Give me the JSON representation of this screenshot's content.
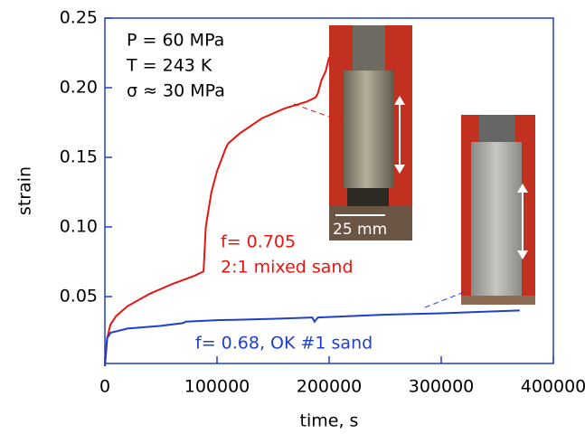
{
  "chart_data": {
    "type": "line",
    "xlabel": "time, s",
    "ylabel": "strain",
    "xlim": [
      0,
      400000
    ],
    "ylim": [
      0,
      0.25
    ],
    "xticks": [
      0,
      100000,
      200000,
      300000,
      400000
    ],
    "yticks": [
      0.05,
      {
        "value": 0.1,
        "label": "0.10"
      },
      0.15,
      {
        "value": 0.2,
        "label": "0.20"
      },
      0.25
    ],
    "annotations": [
      "P = 60 MPa",
      "T = 243 K",
      "σ ≈ 30 MPa",
      "25 mm"
    ],
    "series": [
      {
        "name": "f= 0.705",
        "subtitle": "2:1 mixed sand",
        "color": "#e8140f",
        "x": [
          0,
          2000,
          5000,
          10000,
          20000,
          40000,
          60000,
          80000,
          88000,
          90000,
          95000,
          100000,
          108000,
          110000,
          120000,
          140000,
          160000,
          180000,
          188000,
          190000,
          193000,
          197000,
          200000
        ],
        "values": [
          0,
          0.02,
          0.03,
          0.036,
          0.043,
          0.052,
          0.059,
          0.065,
          0.068,
          0.1,
          0.125,
          0.14,
          0.157,
          0.16,
          0.167,
          0.178,
          0.185,
          0.19,
          0.193,
          0.196,
          0.205,
          0.212,
          0.222
        ]
      },
      {
        "name": "f= 0.68, OK #1 sand",
        "color": "#1f3fcc",
        "x": [
          0,
          2000,
          5000,
          20000,
          50000,
          70000,
          72000,
          100000,
          150000,
          185000,
          187000,
          190000,
          250000,
          300000,
          370000
        ],
        "values": [
          0,
          0.02,
          0.024,
          0.027,
          0.029,
          0.031,
          0.032,
          0.033,
          0.034,
          0.035,
          0.032,
          0.035,
          0.037,
          0.038,
          0.04
        ]
      }
    ]
  }
}
